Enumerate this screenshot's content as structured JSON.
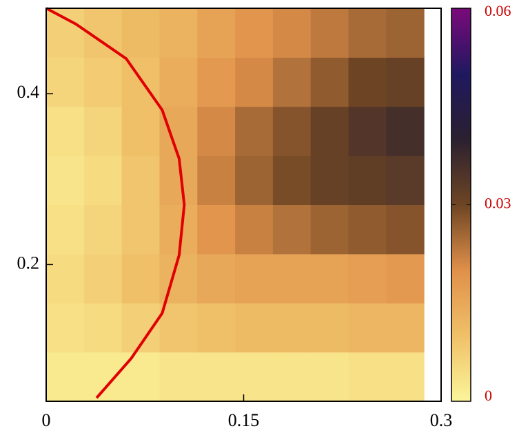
{
  "chart_data": {
    "type": "heatmap",
    "xlim": [
      0,
      0.3
    ],
    "xticks": [
      0,
      0.15,
      0.3
    ],
    "ylim": [
      0.04,
      0.5
    ],
    "yticks": [
      0.2,
      0.4
    ],
    "xbins": [
      0,
      0.0287,
      0.0574,
      0.0861,
      0.1148,
      0.1435,
      0.1722,
      0.2009,
      0.2296,
      0.2583,
      0.287
    ],
    "ybins": [
      0.04,
      0.0975,
      0.155,
      0.2125,
      0.27,
      0.3275,
      0.385,
      0.4425,
      0.5
    ],
    "z": [
      [
        0.002,
        0.002,
        0.002,
        0.003,
        0.003,
        0.003,
        0.003,
        0.003,
        0.004,
        0.004
      ],
      [
        0.004,
        0.005,
        0.007,
        0.009,
        0.01,
        0.011,
        0.011,
        0.011,
        0.012,
        0.012
      ],
      [
        0.005,
        0.007,
        0.01,
        0.013,
        0.015,
        0.016,
        0.016,
        0.016,
        0.017,
        0.018
      ],
      [
        0.004,
        0.006,
        0.009,
        0.014,
        0.019,
        0.022,
        0.024,
        0.026,
        0.027,
        0.028
      ],
      [
        0.003,
        0.005,
        0.009,
        0.015,
        0.022,
        0.026,
        0.029,
        0.031,
        0.032,
        0.033
      ],
      [
        0.004,
        0.006,
        0.01,
        0.015,
        0.021,
        0.025,
        0.028,
        0.031,
        0.034,
        0.036
      ],
      [
        0.006,
        0.008,
        0.01,
        0.014,
        0.018,
        0.021,
        0.024,
        0.027,
        0.03,
        0.031
      ],
      [
        0.007,
        0.009,
        0.011,
        0.013,
        0.016,
        0.019,
        0.021,
        0.023,
        0.025,
        0.026
      ]
    ],
    "zlim": [
      0,
      0.06
    ],
    "zticks": [
      0,
      0.03,
      0.06
    ],
    "colorscale": [
      "#fbf59a",
      "#f0c068",
      "#e0904a",
      "#6e4524",
      "#2a2030",
      "#201860",
      "#7a0a7a"
    ],
    "colorbar_tick_color": "#cc0000",
    "series": [
      {
        "color": "#e00000",
        "x": [
          0,
          0.0226,
          0.0608,
          0.0881,
          0.101,
          0.1049,
          0.101,
          0.0881,
          0.0645,
          0.0383
        ],
        "y": [
          0.5,
          0.4815,
          0.441,
          0.381,
          0.324,
          0.27,
          0.211,
          0.143,
          0.09,
          0.044
        ]
      }
    ]
  }
}
